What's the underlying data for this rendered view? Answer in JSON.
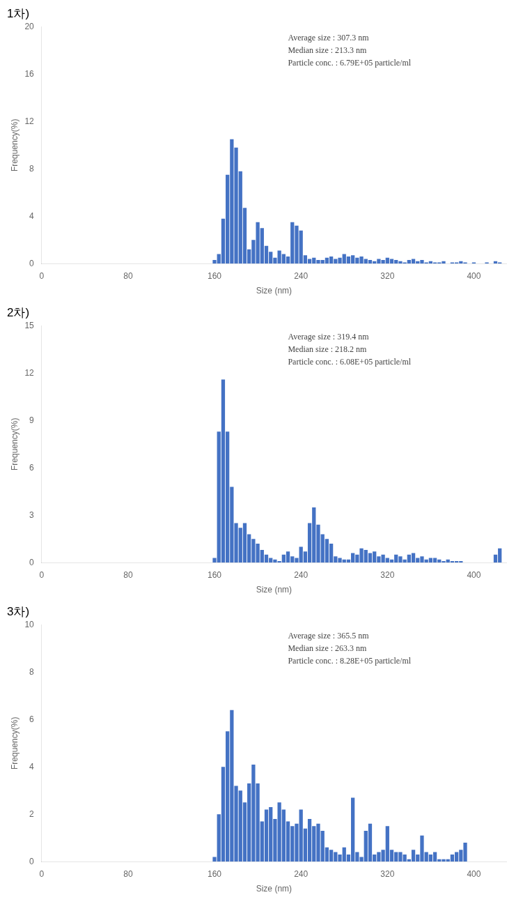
{
  "chart_data": [
    {
      "type": "bar",
      "title": "1차)",
      "xlabel": "Size (nm)",
      "ylabel": "Frequency(%)",
      "annotations": [
        "Average size : 307.3 nm",
        "Median size : 213.3 nm",
        "Particle conc. : 6.79E+05 particle/ml"
      ],
      "color": "#4472C4",
      "x": [
        160,
        164,
        168,
        172,
        176,
        180,
        184,
        188,
        192,
        196,
        200,
        204,
        208,
        212,
        216,
        220,
        224,
        228,
        232,
        236,
        240,
        244,
        248,
        252,
        256,
        260,
        264,
        268,
        272,
        276,
        280,
        284,
        288,
        292,
        296,
        300,
        304,
        308,
        312,
        316,
        320,
        324,
        328,
        332,
        336,
        340,
        344,
        348,
        352,
        356,
        360,
        364,
        368,
        372,
        376,
        380,
        384,
        388,
        392,
        396,
        400,
        404,
        408,
        412,
        416,
        420,
        424
      ],
      "values": [
        0.3,
        0.8,
        3.8,
        7.5,
        10.5,
        9.8,
        7.8,
        4.7,
        1.2,
        2.0,
        3.5,
        3.0,
        1.5,
        1.0,
        0.5,
        1.1,
        0.8,
        0.6,
        3.5,
        3.2,
        2.8,
        0.7,
        0.4,
        0.5,
        0.3,
        0.3,
        0.5,
        0.6,
        0.4,
        0.5,
        0.8,
        0.6,
        0.7,
        0.5,
        0.6,
        0.4,
        0.3,
        0.2,
        0.4,
        0.3,
        0.5,
        0.4,
        0.3,
        0.2,
        0.1,
        0.3,
        0.4,
        0.2,
        0.3,
        0.1,
        0.2,
        0.1,
        0.1,
        0.2,
        0.0,
        0.1,
        0.1,
        0.2,
        0.1,
        0.0,
        0.1,
        0.0,
        0.0,
        0.1,
        0.0,
        0.2,
        0.1
      ],
      "xlim": [
        0,
        430
      ],
      "xticks": [
        0,
        80,
        160,
        240,
        320,
        400
      ],
      "ylim": [
        0,
        20
      ],
      "yticks": [
        0,
        4,
        8,
        12,
        16,
        20
      ],
      "grid": false
    },
    {
      "type": "bar",
      "title": "2차)",
      "xlabel": "Size (nm)",
      "ylabel": "Frequency(%)",
      "annotations": [
        "Average size : 319.4 nm",
        "Median size : 218.2 nm",
        "Particle conc. : 6.08E+05 particle/ml"
      ],
      "color": "#4472C4",
      "x": [
        160,
        164,
        168,
        172,
        176,
        180,
        184,
        188,
        192,
        196,
        200,
        204,
        208,
        212,
        216,
        220,
        224,
        228,
        232,
        236,
        240,
        244,
        248,
        252,
        256,
        260,
        264,
        268,
        272,
        276,
        280,
        284,
        288,
        292,
        296,
        300,
        304,
        308,
        312,
        316,
        320,
        324,
        328,
        332,
        336,
        340,
        344,
        348,
        352,
        356,
        360,
        364,
        368,
        372,
        376,
        380,
        384,
        388,
        392,
        396,
        400,
        404,
        408,
        412,
        416,
        420,
        424
      ],
      "values": [
        0.3,
        8.3,
        11.6,
        8.3,
        4.8,
        2.5,
        2.2,
        2.5,
        1.8,
        1.5,
        1.2,
        0.8,
        0.5,
        0.3,
        0.2,
        0.1,
        0.5,
        0.7,
        0.4,
        0.3,
        1.0,
        0.7,
        2.5,
        3.5,
        2.4,
        1.8,
        1.5,
        1.2,
        0.4,
        0.3,
        0.2,
        0.2,
        0.6,
        0.5,
        0.9,
        0.8,
        0.6,
        0.7,
        0.4,
        0.5,
        0.3,
        0.2,
        0.5,
        0.4,
        0.2,
        0.5,
        0.6,
        0.3,
        0.4,
        0.2,
        0.3,
        0.3,
        0.2,
        0.1,
        0.2,
        0.1,
        0.1,
        0.1,
        0.0,
        0.0,
        0.0,
        0.0,
        0.0,
        0.0,
        0.0,
        0.5,
        0.9
      ],
      "xlim": [
        0,
        430
      ],
      "xticks": [
        0,
        80,
        160,
        240,
        320,
        400
      ],
      "ylim": [
        0,
        15
      ],
      "yticks": [
        0,
        3,
        6,
        9,
        12,
        15
      ],
      "grid": false
    },
    {
      "type": "bar",
      "title": "3차)",
      "xlabel": "Size (nm)",
      "ylabel": "Frequency(%)",
      "annotations": [
        "Average size : 365.5 nm",
        "Median size : 263.3 nm",
        "Particle conc. : 8.28E+05 particle/ml"
      ],
      "color": "#4472C4",
      "x": [
        160,
        164,
        168,
        172,
        176,
        180,
        184,
        188,
        192,
        196,
        200,
        204,
        208,
        212,
        216,
        220,
        224,
        228,
        232,
        236,
        240,
        244,
        248,
        252,
        256,
        260,
        264,
        268,
        272,
        276,
        280,
        284,
        288,
        292,
        296,
        300,
        304,
        308,
        312,
        316,
        320,
        324,
        328,
        332,
        336,
        340,
        344,
        348,
        352,
        356,
        360,
        364,
        368,
        372,
        376,
        380,
        384,
        388,
        392,
        396,
        400,
        404,
        408,
        412,
        416,
        420,
        424
      ],
      "values": [
        0.2,
        2.0,
        4.0,
        5.5,
        6.4,
        3.2,
        3.0,
        2.5,
        3.3,
        4.1,
        3.3,
        1.7,
        2.2,
        2.3,
        1.8,
        2.5,
        2.2,
        1.7,
        1.5,
        1.6,
        2.2,
        1.4,
        1.8,
        1.5,
        1.6,
        1.3,
        0.6,
        0.5,
        0.4,
        0.3,
        0.6,
        0.3,
        2.7,
        0.4,
        0.2,
        1.3,
        1.6,
        0.3,
        0.4,
        0.5,
        1.5,
        0.5,
        0.4,
        0.4,
        0.3,
        0.1,
        0.5,
        0.3,
        1.1,
        0.4,
        0.3,
        0.4,
        0.1,
        0.1,
        0.1,
        0.3,
        0.4,
        0.5,
        0.8,
        0.0,
        0.0,
        0.0,
        0.0,
        0.0,
        0.0,
        0.0,
        0.0
      ],
      "xlim": [
        0,
        430
      ],
      "xticks": [
        0,
        80,
        160,
        240,
        320,
        400
      ],
      "ylim": [
        0,
        10
      ],
      "yticks": [
        0,
        2,
        4,
        6,
        8,
        10
      ],
      "grid": false
    }
  ]
}
